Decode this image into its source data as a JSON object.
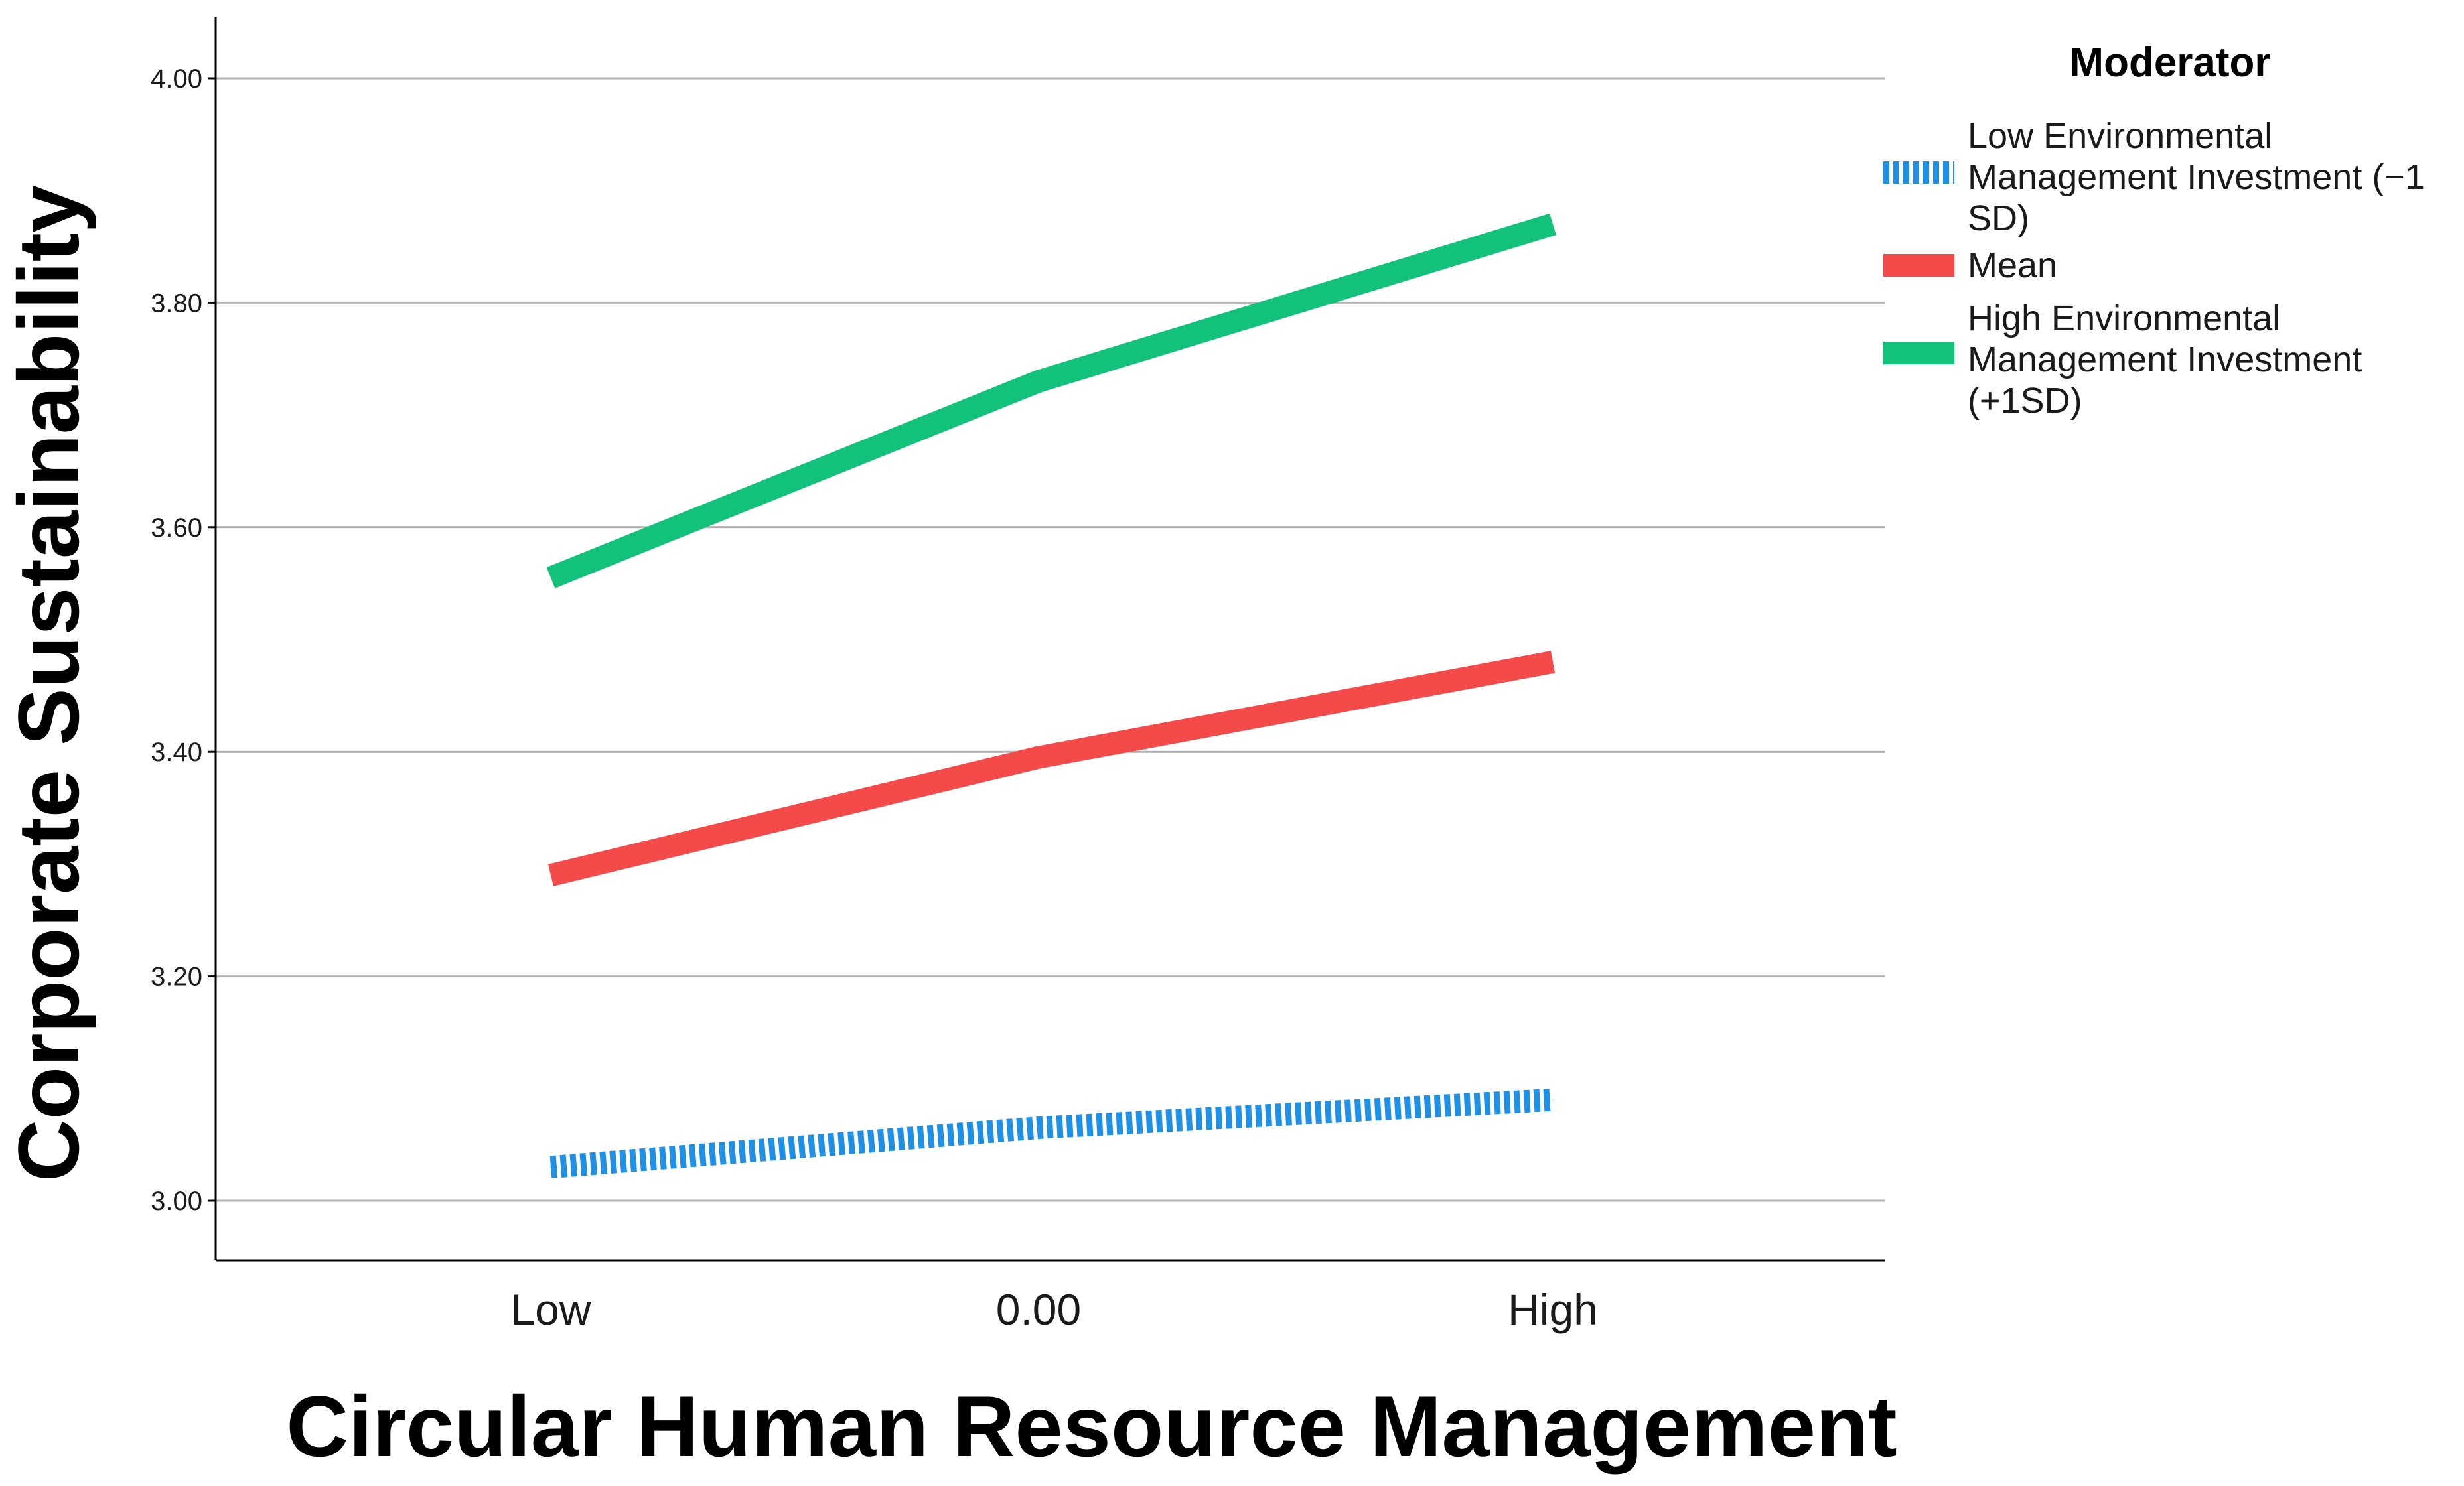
{
  "chart_data": {
    "type": "line",
    "title": "",
    "xlabel": "Circular Human Resource Management",
    "ylabel": "Corporate Sustainability",
    "categories": [
      "Low",
      "0.00",
      "High"
    ],
    "ylim": [
      2.95,
      4.05
    ],
    "yticks": [
      "3.00",
      "3.20",
      "3.40",
      "3.60",
      "3.80",
      "4.00"
    ],
    "grid": true,
    "legend": {
      "title": "Moderator",
      "position": "right-top"
    },
    "series": [
      {
        "name": "Low Environmental Management Investment (−1 SD)",
        "legend_lines": [
          "Low Environmental",
          "Management Investment (−1",
          "SD)"
        ],
        "values": [
          3.03,
          3.065,
          3.09
        ],
        "color": "#1e90e6",
        "style": "dotted"
      },
      {
        "name": "Mean",
        "legend_lines": [
          "Mean"
        ],
        "values": [
          3.29,
          3.395,
          3.48
        ],
        "color": "#f44a4a",
        "style": "solid"
      },
      {
        "name": "High Environmental Management Investment (+1SD)",
        "legend_lines": [
          "High Environmental",
          "Management Investment",
          "(+1SD)"
        ],
        "values": [
          3.555,
          3.73,
          3.87
        ],
        "color": "#12c27a",
        "style": "solid"
      }
    ]
  }
}
